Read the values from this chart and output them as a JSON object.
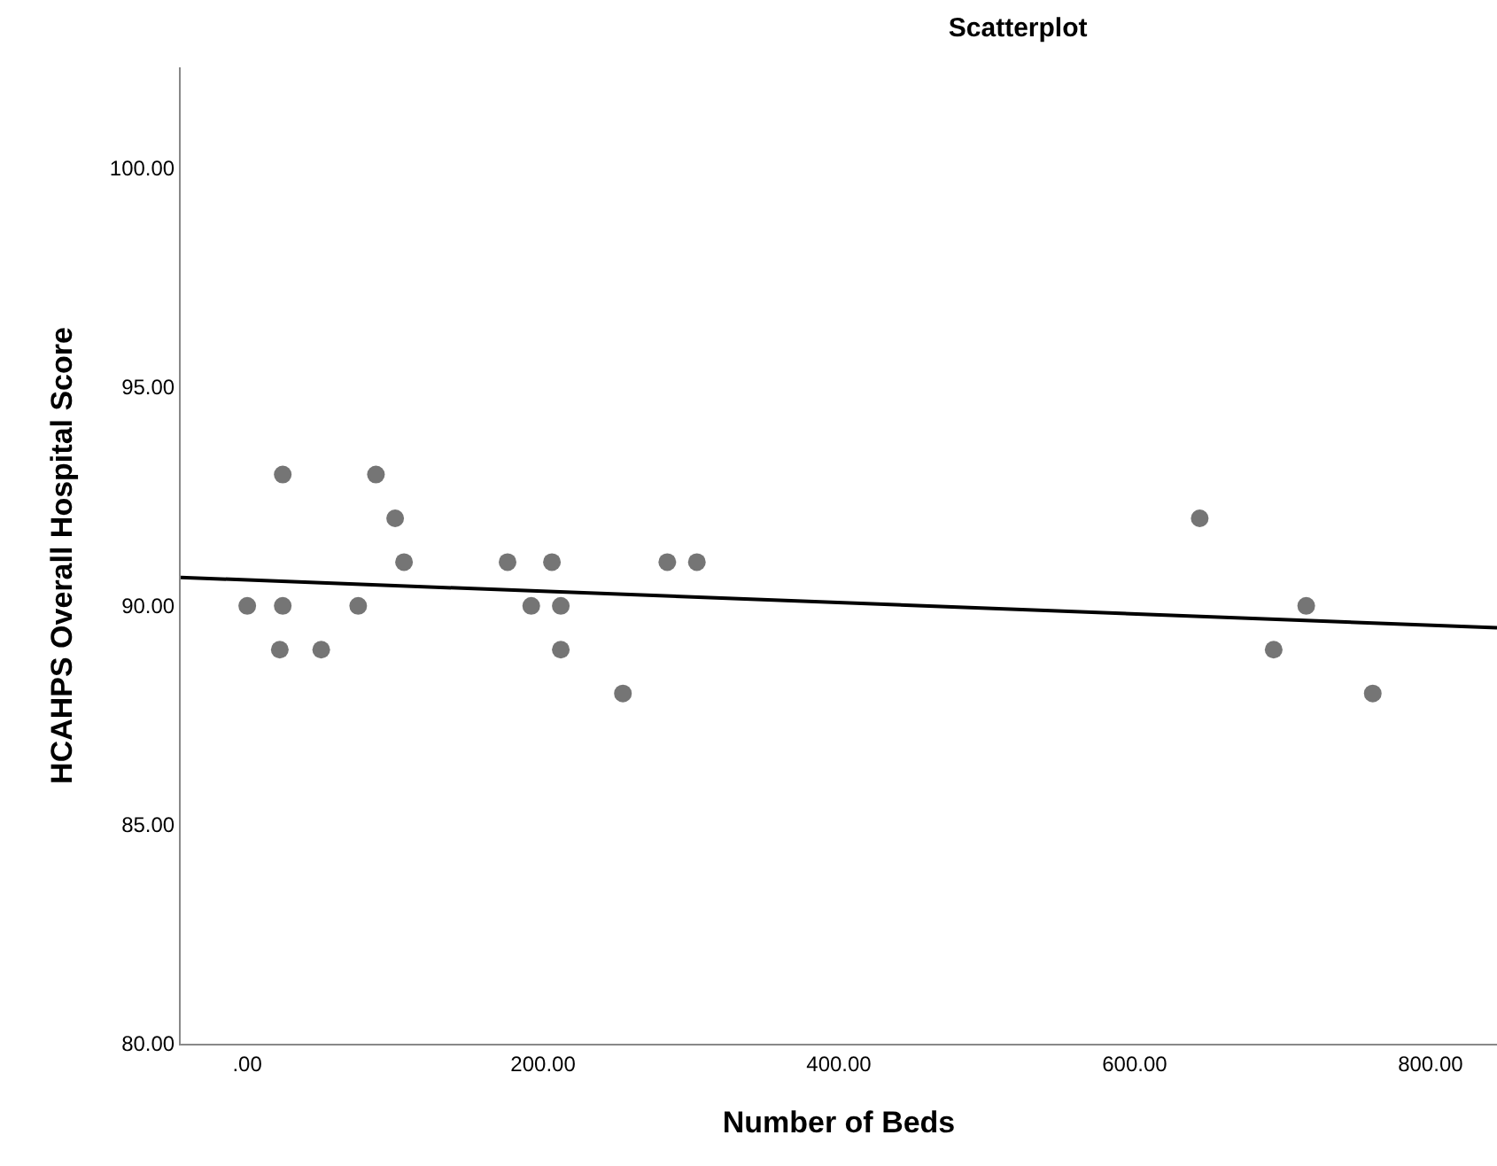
{
  "chart_data": {
    "type": "scatter",
    "title": "Scatterplot",
    "xlabel": "Number of Beds",
    "ylabel": "HCAHPS Overall Hospital Score",
    "xlim": [
      -45,
      845
    ],
    "ylim": [
      80,
      102.3
    ],
    "xticks": [
      {
        "value": 0,
        "label": ".00"
      },
      {
        "value": 200,
        "label": "200.00"
      },
      {
        "value": 400,
        "label": "400.00"
      },
      {
        "value": 600,
        "label": "600.00"
      },
      {
        "value": 800,
        "label": "800.00"
      }
    ],
    "yticks": [
      {
        "value": 80,
        "label": "80.00"
      },
      {
        "value": 85,
        "label": "85.00"
      },
      {
        "value": 90,
        "label": "90.00"
      },
      {
        "value": 95,
        "label": "95.00"
      },
      {
        "value": 100,
        "label": "100.00"
      }
    ],
    "series": [
      {
        "marker": "circle",
        "color": "#757575",
        "x": [
          0,
          24,
          75,
          192,
          212,
          22,
          50,
          212,
          106,
          176,
          206,
          284,
          304,
          100,
          24,
          87,
          254,
          644,
          694,
          716,
          761
        ],
        "values": [
          90,
          90,
          90,
          90,
          90,
          89,
          89,
          89,
          91,
          91,
          91,
          91,
          91,
          92,
          93,
          93,
          88,
          92,
          89,
          90,
          88
        ]
      },
      {
        "type": "line",
        "marker": "none",
        "color": "#000000",
        "x": [
          -45,
          845
        ],
        "values": [
          90.65,
          89.5
        ]
      }
    ]
  }
}
